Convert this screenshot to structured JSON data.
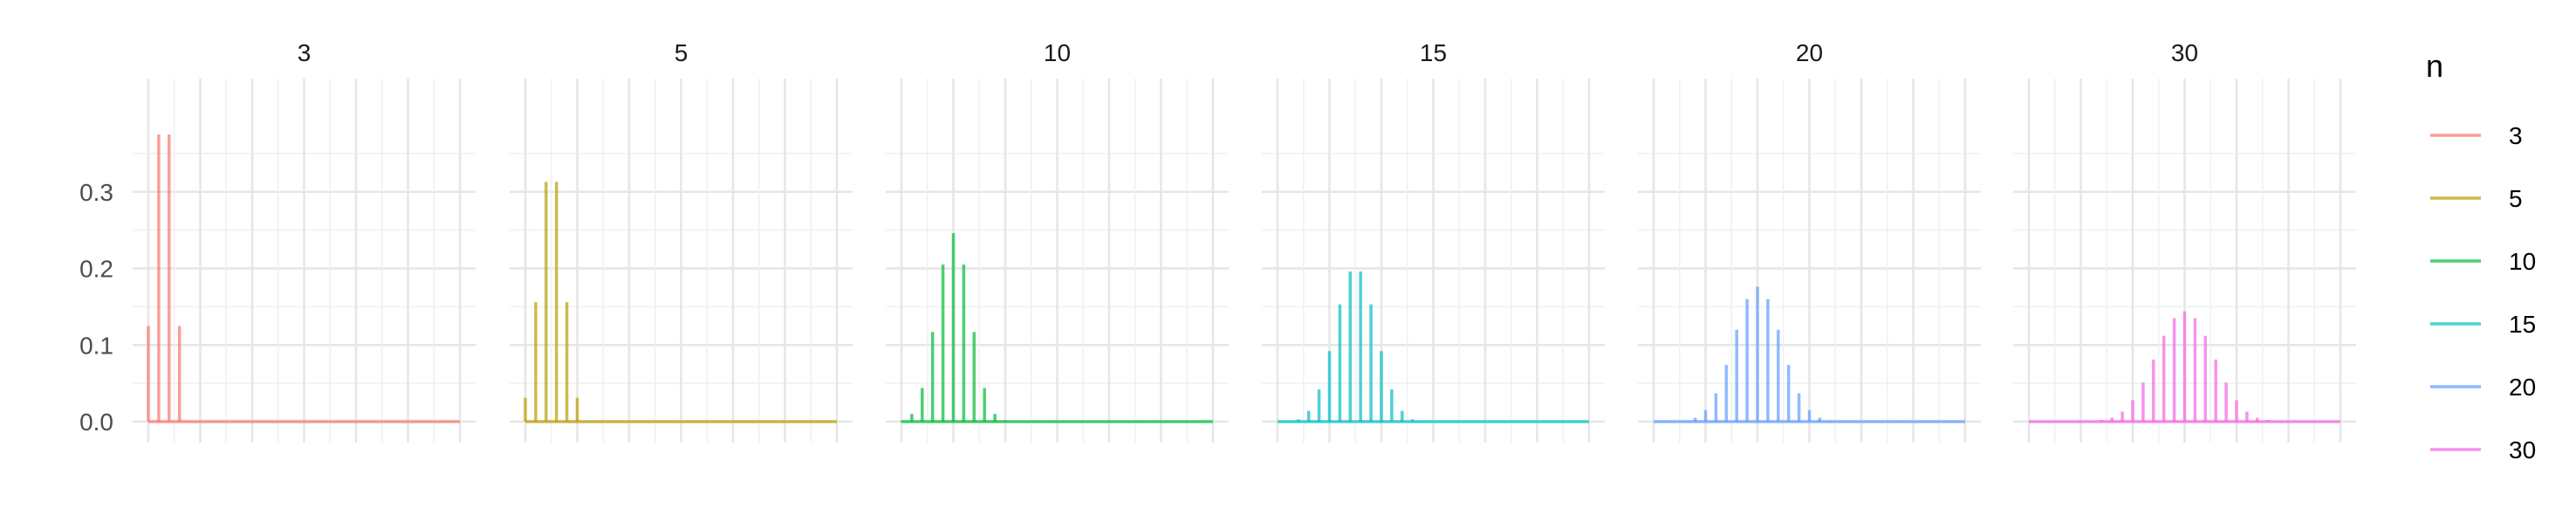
{
  "chart_data": {
    "type": "bar",
    "title": "",
    "xlabel": "",
    "ylabel": "",
    "ylim": [
      0,
      0.4
    ],
    "y_ticks": [
      "0.0",
      "0.1",
      "0.2",
      "0.3"
    ],
    "grid": true,
    "x_range": [
      0,
      30
    ],
    "legend": {
      "title": "n",
      "position": "right",
      "entries": [
        "3",
        "5",
        "10",
        "15",
        "20",
        "30"
      ]
    },
    "facets": [
      {
        "label": "3",
        "color": "#F8766D",
        "x": [
          0,
          1,
          2,
          3
        ],
        "values": [
          0.125,
          0.375,
          0.375,
          0.125
        ]
      },
      {
        "label": "5",
        "color": "#B79F00",
        "x": [
          0,
          1,
          2,
          3,
          4,
          5
        ],
        "values": [
          0.031,
          0.156,
          0.313,
          0.313,
          0.156,
          0.031
        ]
      },
      {
        "label": "10",
        "color": "#00BA38",
        "x": [
          0,
          1,
          2,
          3,
          4,
          5,
          6,
          7,
          8,
          9,
          10
        ],
        "values": [
          0.001,
          0.01,
          0.044,
          0.117,
          0.205,
          0.246,
          0.205,
          0.117,
          0.044,
          0.01,
          0.001
        ]
      },
      {
        "label": "15",
        "color": "#00BFC4",
        "x": [
          1,
          2,
          3,
          4,
          5,
          6,
          7,
          8,
          9,
          10,
          11,
          12,
          13,
          14
        ],
        "values": [
          0.0005,
          0.003,
          0.014,
          0.042,
          0.092,
          0.153,
          0.196,
          0.196,
          0.153,
          0.092,
          0.042,
          0.014,
          0.003,
          0.0005
        ]
      },
      {
        "label": "20",
        "color": "#619CFF",
        "x": [
          3,
          4,
          5,
          6,
          7,
          8,
          9,
          10,
          11,
          12,
          13,
          14,
          15,
          16,
          17
        ],
        "values": [
          0.001,
          0.005,
          0.015,
          0.037,
          0.074,
          0.12,
          0.16,
          0.176,
          0.16,
          0.12,
          0.074,
          0.037,
          0.015,
          0.005,
          0.001
        ]
      },
      {
        "label": "30",
        "color": "#F564E3",
        "x": [
          7,
          8,
          9,
          10,
          11,
          12,
          13,
          14,
          15,
          16,
          17,
          18,
          19,
          20,
          21,
          22,
          23
        ],
        "values": [
          0.002,
          0.005,
          0.013,
          0.028,
          0.051,
          0.081,
          0.112,
          0.135,
          0.144,
          0.135,
          0.112,
          0.081,
          0.051,
          0.028,
          0.013,
          0.005,
          0.002
        ]
      }
    ]
  }
}
